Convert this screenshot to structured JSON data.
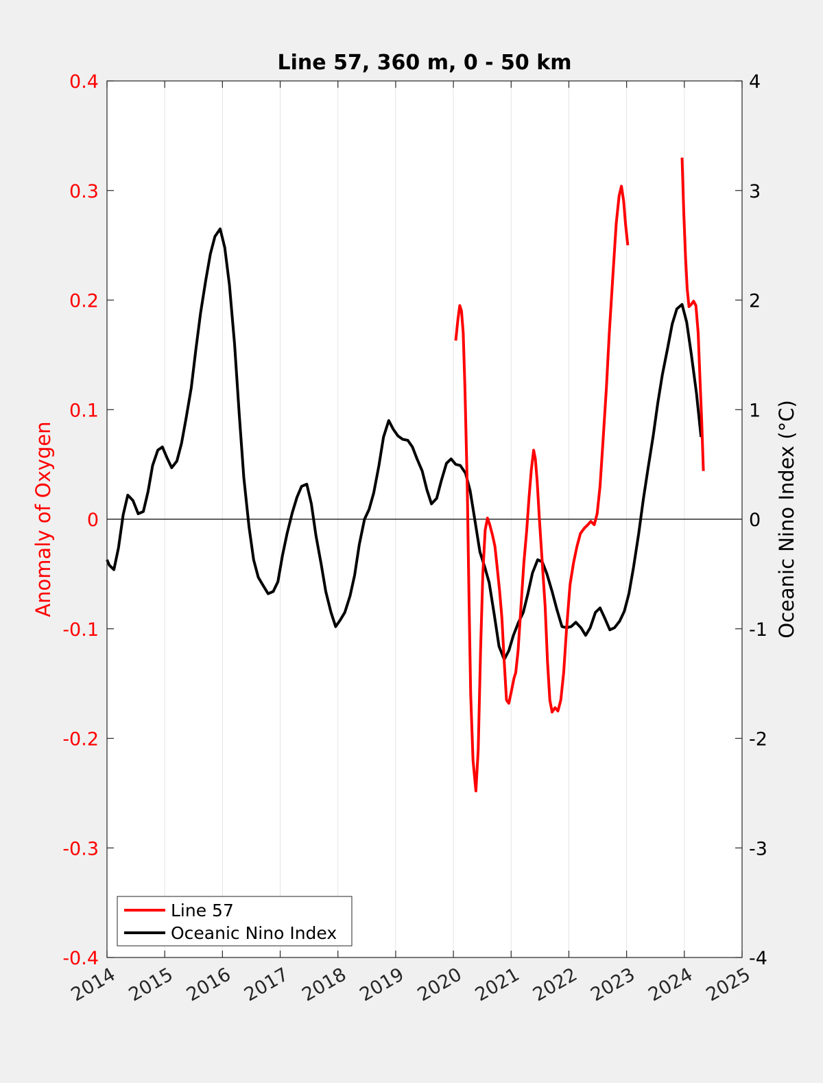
{
  "chart_data": {
    "type": "line",
    "title": "Line 57, 360 m, 0 - 50 km",
    "xlabel": "",
    "ylabel_left": "Anomaly of Oxygen",
    "ylabel_right": "Oceanic Nino Index (°C)",
    "xlim": [
      2014,
      2025
    ],
    "ylim_left": [
      -0.4,
      0.4
    ],
    "ylim_right": [
      -4,
      4
    ],
    "x_ticks": [
      "2014",
      "2015",
      "2016",
      "2017",
      "2018",
      "2019",
      "2020",
      "2021",
      "2022",
      "2023",
      "2024",
      "2025"
    ],
    "y_left_ticks": [
      "0.4",
      "0.3",
      "0.2",
      "0.1",
      "0",
      "-0.1",
      "-0.2",
      "-0.3",
      "-0.4"
    ],
    "y_right_ticks": [
      "4",
      "3",
      "2",
      "1",
      "0",
      "-1",
      "-2",
      "-3",
      "-4"
    ],
    "grid": "vertical",
    "zero_line": true,
    "legend_position": "bottom-left",
    "colors": {
      "left_axis": "#ff0000",
      "line57": "#ff0000",
      "oni": "#000000",
      "right_axis": "#000000"
    },
    "series": [
      {
        "name": "Line 57",
        "axis": "left",
        "segments": [
          [
            [
              2020.04,
              0.163
            ],
            [
              2020.08,
              0.183
            ],
            [
              2020.11,
              0.195
            ],
            [
              2020.14,
              0.19
            ],
            [
              2020.17,
              0.17
            ],
            [
              2020.2,
              0.12
            ],
            [
              2020.24,
              0.03
            ],
            [
              2020.27,
              -0.07
            ],
            [
              2020.3,
              -0.16
            ],
            [
              2020.34,
              -0.22
            ],
            [
              2020.39,
              -0.248
            ],
            [
              2020.43,
              -0.21
            ],
            [
              2020.47,
              -0.12
            ],
            [
              2020.51,
              -0.05
            ],
            [
              2020.55,
              -0.01
            ],
            [
              2020.59,
              0.001
            ],
            [
              2020.63,
              -0.005
            ],
            [
              2020.68,
              -0.015
            ],
            [
              2020.72,
              -0.025
            ],
            [
              2020.76,
              -0.045
            ],
            [
              2020.8,
              -0.065
            ],
            [
              2020.84,
              -0.09
            ],
            [
              2020.88,
              -0.13
            ],
            [
              2020.92,
              -0.165
            ],
            [
              2020.96,
              -0.168
            ],
            [
              2021.0,
              -0.158
            ],
            [
              2021.05,
              -0.145
            ],
            [
              2021.08,
              -0.14
            ],
            [
              2021.12,
              -0.12
            ],
            [
              2021.17,
              -0.08
            ],
            [
              2021.22,
              -0.04
            ],
            [
              2021.27,
              -0.01
            ],
            [
              2021.31,
              0.02
            ],
            [
              2021.35,
              0.045
            ],
            [
              2021.39,
              0.063
            ],
            [
              2021.42,
              0.055
            ],
            [
              2021.45,
              0.035
            ],
            [
              2021.49,
              0.0
            ],
            [
              2021.54,
              -0.04
            ],
            [
              2021.59,
              -0.08
            ],
            [
              2021.63,
              -0.13
            ],
            [
              2021.67,
              -0.165
            ],
            [
              2021.71,
              -0.176
            ],
            [
              2021.76,
              -0.172
            ],
            [
              2021.81,
              -0.175
            ],
            [
              2021.86,
              -0.165
            ],
            [
              2021.91,
              -0.14
            ],
            [
              2021.96,
              -0.1
            ],
            [
              2022.02,
              -0.06
            ],
            [
              2022.08,
              -0.04
            ],
            [
              2022.14,
              -0.025
            ],
            [
              2022.2,
              -0.013
            ],
            [
              2022.27,
              -0.008
            ],
            [
              2022.33,
              -0.005
            ],
            [
              2022.38,
              -0.002
            ],
            [
              2022.44,
              -0.005
            ],
            [
              2022.49,
              0.005
            ],
            [
              2022.54,
              0.03
            ],
            [
              2022.59,
              0.07
            ],
            [
              2022.65,
              0.12
            ],
            [
              2022.7,
              0.17
            ],
            [
              2022.76,
              0.22
            ],
            [
              2022.82,
              0.27
            ],
            [
              2022.87,
              0.295
            ],
            [
              2022.91,
              0.304
            ],
            [
              2022.95,
              0.29
            ],
            [
              2022.98,
              0.27
            ],
            [
              2023.02,
              0.25
            ]
          ],
          [
            [
              2023.96,
              0.33
            ],
            [
              2023.99,
              0.28
            ],
            [
              2024.02,
              0.24
            ],
            [
              2024.05,
              0.21
            ],
            [
              2024.08,
              0.194
            ],
            [
              2024.12,
              0.196
            ],
            [
              2024.16,
              0.199
            ],
            [
              2024.2,
              0.195
            ],
            [
              2024.24,
              0.17
            ],
            [
              2024.27,
              0.13
            ],
            [
              2024.3,
              0.09
            ],
            [
              2024.33,
              0.044
            ]
          ]
        ]
      },
      {
        "name": "Oceanic Nino Index",
        "axis": "right",
        "segments": [
          [
            [
              2014.0,
              -0.37
            ],
            [
              2014.04,
              -0.42
            ],
            [
              2014.12,
              -0.46
            ],
            [
              2014.2,
              -0.26
            ],
            [
              2014.28,
              0.04
            ],
            [
              2014.36,
              0.22
            ],
            [
              2014.45,
              0.17
            ],
            [
              2014.54,
              0.05
            ],
            [
              2014.63,
              0.07
            ],
            [
              2014.71,
              0.25
            ],
            [
              2014.79,
              0.49
            ],
            [
              2014.88,
              0.63
            ],
            [
              2014.96,
              0.66
            ],
            [
              2015.04,
              0.56
            ],
            [
              2015.12,
              0.47
            ],
            [
              2015.21,
              0.53
            ],
            [
              2015.29,
              0.69
            ],
            [
              2015.37,
              0.92
            ],
            [
              2015.46,
              1.2
            ],
            [
              2015.54,
              1.55
            ],
            [
              2015.62,
              1.88
            ],
            [
              2015.71,
              2.18
            ],
            [
              2015.79,
              2.42
            ],
            [
              2015.87,
              2.58
            ],
            [
              2015.96,
              2.65
            ],
            [
              2016.04,
              2.48
            ],
            [
              2016.12,
              2.14
            ],
            [
              2016.21,
              1.6
            ],
            [
              2016.29,
              0.96
            ],
            [
              2016.37,
              0.38
            ],
            [
              2016.46,
              -0.07
            ],
            [
              2016.54,
              -0.37
            ],
            [
              2016.62,
              -0.53
            ],
            [
              2016.71,
              -0.61
            ],
            [
              2016.79,
              -0.68
            ],
            [
              2016.88,
              -0.66
            ],
            [
              2016.96,
              -0.57
            ],
            [
              2017.04,
              -0.33
            ],
            [
              2017.12,
              -0.13
            ],
            [
              2017.21,
              0.06
            ],
            [
              2017.29,
              0.2
            ],
            [
              2017.37,
              0.3
            ],
            [
              2017.46,
              0.32
            ],
            [
              2017.54,
              0.14
            ],
            [
              2017.62,
              -0.15
            ],
            [
              2017.71,
              -0.41
            ],
            [
              2017.79,
              -0.66
            ],
            [
              2017.88,
              -0.85
            ],
            [
              2017.96,
              -0.98
            ],
            [
              2018.04,
              -0.92
            ],
            [
              2018.12,
              -0.85
            ],
            [
              2018.21,
              -0.7
            ],
            [
              2018.29,
              -0.51
            ],
            [
              2018.37,
              -0.23
            ],
            [
              2018.46,
              0.0
            ],
            [
              2018.54,
              0.09
            ],
            [
              2018.62,
              0.24
            ],
            [
              2018.71,
              0.49
            ],
            [
              2018.79,
              0.75
            ],
            [
              2018.88,
              0.9
            ],
            [
              2018.96,
              0.82
            ],
            [
              2019.04,
              0.76
            ],
            [
              2019.12,
              0.73
            ],
            [
              2019.21,
              0.72
            ],
            [
              2019.29,
              0.66
            ],
            [
              2019.37,
              0.55
            ],
            [
              2019.46,
              0.44
            ],
            [
              2019.54,
              0.27
            ],
            [
              2019.62,
              0.14
            ],
            [
              2019.71,
              0.19
            ],
            [
              2019.79,
              0.35
            ],
            [
              2019.88,
              0.51
            ],
            [
              2019.96,
              0.55
            ],
            [
              2020.04,
              0.5
            ],
            [
              2020.12,
              0.49
            ],
            [
              2020.21,
              0.42
            ],
            [
              2020.29,
              0.26
            ],
            [
              2020.37,
              0.0
            ],
            [
              2020.46,
              -0.3
            ],
            [
              2020.54,
              -0.43
            ],
            [
              2020.62,
              -0.58
            ],
            [
              2020.71,
              -0.88
            ],
            [
              2020.79,
              -1.16
            ],
            [
              2020.88,
              -1.28
            ],
            [
              2020.96,
              -1.2
            ],
            [
              2021.04,
              -1.06
            ],
            [
              2021.12,
              -0.95
            ],
            [
              2021.21,
              -0.85
            ],
            [
              2021.29,
              -0.68
            ],
            [
              2021.37,
              -0.49
            ],
            [
              2021.46,
              -0.37
            ],
            [
              2021.54,
              -0.39
            ],
            [
              2021.62,
              -0.5
            ],
            [
              2021.71,
              -0.66
            ],
            [
              2021.79,
              -0.82
            ],
            [
              2021.88,
              -0.98
            ],
            [
              2021.96,
              -0.99
            ],
            [
              2022.04,
              -0.98
            ],
            [
              2022.12,
              -0.94
            ],
            [
              2022.21,
              -0.99
            ],
            [
              2022.29,
              -1.06
            ],
            [
              2022.37,
              -0.99
            ],
            [
              2022.46,
              -0.85
            ],
            [
              2022.54,
              -0.81
            ],
            [
              2022.62,
              -0.9
            ],
            [
              2022.71,
              -1.01
            ],
            [
              2022.79,
              -0.99
            ],
            [
              2022.88,
              -0.93
            ],
            [
              2022.96,
              -0.84
            ],
            [
              2023.04,
              -0.68
            ],
            [
              2023.12,
              -0.44
            ],
            [
              2023.21,
              -0.13
            ],
            [
              2023.29,
              0.18
            ],
            [
              2023.37,
              0.46
            ],
            [
              2023.46,
              0.76
            ],
            [
              2023.54,
              1.06
            ],
            [
              2023.62,
              1.32
            ],
            [
              2023.71,
              1.56
            ],
            [
              2023.79,
              1.78
            ],
            [
              2023.87,
              1.92
            ],
            [
              2023.96,
              1.96
            ],
            [
              2024.04,
              1.8
            ],
            [
              2024.12,
              1.51
            ],
            [
              2024.21,
              1.15
            ],
            [
              2024.29,
              0.75
            ]
          ]
        ]
      }
    ]
  }
}
